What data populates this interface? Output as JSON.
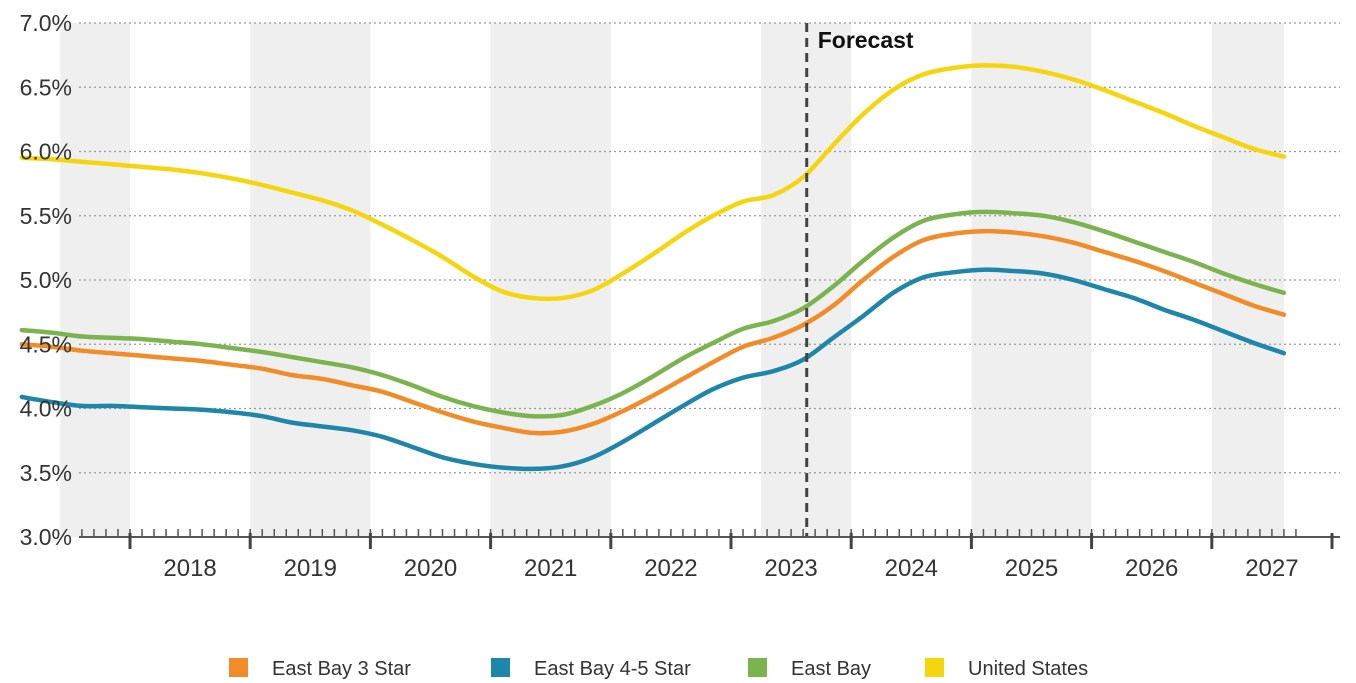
{
  "chart_data": {
    "type": "line",
    "title": "",
    "xlabel": "",
    "ylabel": "",
    "y_unit": "%",
    "ylim": [
      3.0,
      7.0
    ],
    "y_ticks": [
      "3.0%",
      "3.5%",
      "4.0%",
      "4.5%",
      "5.0%",
      "5.5%",
      "6.0%",
      "6.5%",
      "7.0%"
    ],
    "x_tick_labels": [
      "2018",
      "2019",
      "2020",
      "2021",
      "2022",
      "2023",
      "2024",
      "2025",
      "2026",
      "2027"
    ],
    "x_range": [
      2017.0,
      2027.7
    ],
    "grid": "horizontal dotted lines; alternating shaded year bands",
    "legend_position": "bottom",
    "forecast": {
      "label": "Forecast",
      "x": 2023.63
    },
    "series": [
      {
        "name": "East Bay 3 Star",
        "color": "#F28C28",
        "x": [
          2017.1,
          2017.35,
          2017.6,
          2017.85,
          2018.1,
          2018.35,
          2018.6,
          2018.85,
          2019.1,
          2019.35,
          2019.6,
          2019.85,
          2020.1,
          2020.35,
          2020.6,
          2020.85,
          2021.1,
          2021.35,
          2021.6,
          2021.85,
          2022.1,
          2022.35,
          2022.6,
          2022.85,
          2023.1,
          2023.35,
          2023.6,
          2023.85,
          2024.1,
          2024.35,
          2024.6,
          2024.85,
          2025.1,
          2025.35,
          2025.6,
          2025.85,
          2026.1,
          2026.35,
          2026.6,
          2026.85,
          2027.1,
          2027.35,
          2027.6
        ],
        "y": [
          4.5,
          4.48,
          4.45,
          4.43,
          4.41,
          4.39,
          4.37,
          4.34,
          4.31,
          4.26,
          4.23,
          4.18,
          4.13,
          4.05,
          3.97,
          3.9,
          3.85,
          3.81,
          3.82,
          3.88,
          3.98,
          4.1,
          4.23,
          4.36,
          4.48,
          4.55,
          4.65,
          4.8,
          5.0,
          5.18,
          5.31,
          5.36,
          5.38,
          5.37,
          5.34,
          5.29,
          5.22,
          5.15,
          5.07,
          4.98,
          4.89,
          4.8,
          4.73
        ]
      },
      {
        "name": "East Bay 4-5 Star",
        "color": "#1E86A8",
        "x": [
          2017.1,
          2017.35,
          2017.6,
          2017.85,
          2018.1,
          2018.35,
          2018.6,
          2018.85,
          2019.1,
          2019.35,
          2019.6,
          2019.85,
          2020.1,
          2020.35,
          2020.6,
          2020.85,
          2021.1,
          2021.35,
          2021.6,
          2021.85,
          2022.1,
          2022.35,
          2022.6,
          2022.85,
          2023.1,
          2023.35,
          2023.6,
          2023.85,
          2024.1,
          2024.35,
          2024.6,
          2024.85,
          2025.1,
          2025.35,
          2025.6,
          2025.85,
          2026.1,
          2026.35,
          2026.6,
          2026.85,
          2027.1,
          2027.35,
          2027.6
        ],
        "y": [
          4.09,
          4.05,
          4.02,
          4.02,
          4.01,
          4.0,
          3.99,
          3.97,
          3.94,
          3.89,
          3.86,
          3.83,
          3.78,
          3.7,
          3.62,
          3.57,
          3.54,
          3.53,
          3.55,
          3.62,
          3.74,
          3.88,
          4.02,
          4.15,
          4.24,
          4.29,
          4.38,
          4.55,
          4.72,
          4.9,
          5.02,
          5.06,
          5.08,
          5.07,
          5.05,
          5.0,
          4.93,
          4.86,
          4.77,
          4.69,
          4.6,
          4.51,
          4.43
        ]
      },
      {
        "name": "East Bay",
        "color": "#7BB44F",
        "x": [
          2017.1,
          2017.35,
          2017.6,
          2017.85,
          2018.1,
          2018.35,
          2018.6,
          2018.85,
          2019.1,
          2019.35,
          2019.6,
          2019.85,
          2020.1,
          2020.35,
          2020.6,
          2020.85,
          2021.1,
          2021.35,
          2021.6,
          2021.85,
          2022.1,
          2022.35,
          2022.6,
          2022.85,
          2023.1,
          2023.35,
          2023.6,
          2023.85,
          2024.1,
          2024.35,
          2024.6,
          2024.85,
          2025.1,
          2025.35,
          2025.6,
          2025.85,
          2026.1,
          2026.35,
          2026.6,
          2026.85,
          2027.1,
          2027.35,
          2027.6
        ],
        "y": [
          4.61,
          4.59,
          4.56,
          4.55,
          4.54,
          4.52,
          4.5,
          4.47,
          4.44,
          4.4,
          4.36,
          4.32,
          4.26,
          4.18,
          4.09,
          4.02,
          3.97,
          3.94,
          3.95,
          4.02,
          4.12,
          4.25,
          4.39,
          4.51,
          4.62,
          4.68,
          4.78,
          4.95,
          5.15,
          5.33,
          5.46,
          5.51,
          5.53,
          5.52,
          5.5,
          5.45,
          5.38,
          5.3,
          5.22,
          5.14,
          5.05,
          4.97,
          4.9
        ]
      },
      {
        "name": "United States",
        "color": "#F5D60E",
        "x": [
          2017.1,
          2017.35,
          2017.6,
          2017.85,
          2018.1,
          2018.35,
          2018.6,
          2018.85,
          2019.1,
          2019.35,
          2019.6,
          2019.85,
          2020.1,
          2020.35,
          2020.6,
          2020.85,
          2021.1,
          2021.35,
          2021.6,
          2021.85,
          2022.1,
          2022.35,
          2022.6,
          2022.85,
          2023.1,
          2023.35,
          2023.6,
          2023.85,
          2024.1,
          2024.35,
          2024.6,
          2024.85,
          2025.1,
          2025.35,
          2025.6,
          2025.85,
          2026.1,
          2026.35,
          2026.6,
          2026.85,
          2027.1,
          2027.35,
          2027.6
        ],
        "y": [
          5.95,
          5.94,
          5.92,
          5.9,
          5.88,
          5.86,
          5.83,
          5.79,
          5.74,
          5.68,
          5.62,
          5.54,
          5.43,
          5.31,
          5.18,
          5.03,
          4.91,
          4.86,
          4.86,
          4.92,
          5.05,
          5.2,
          5.36,
          5.5,
          5.61,
          5.66,
          5.8,
          6.05,
          6.29,
          6.48,
          6.6,
          6.65,
          6.67,
          6.66,
          6.62,
          6.56,
          6.48,
          6.39,
          6.3,
          6.2,
          6.11,
          6.02,
          5.96
        ]
      }
    ]
  }
}
